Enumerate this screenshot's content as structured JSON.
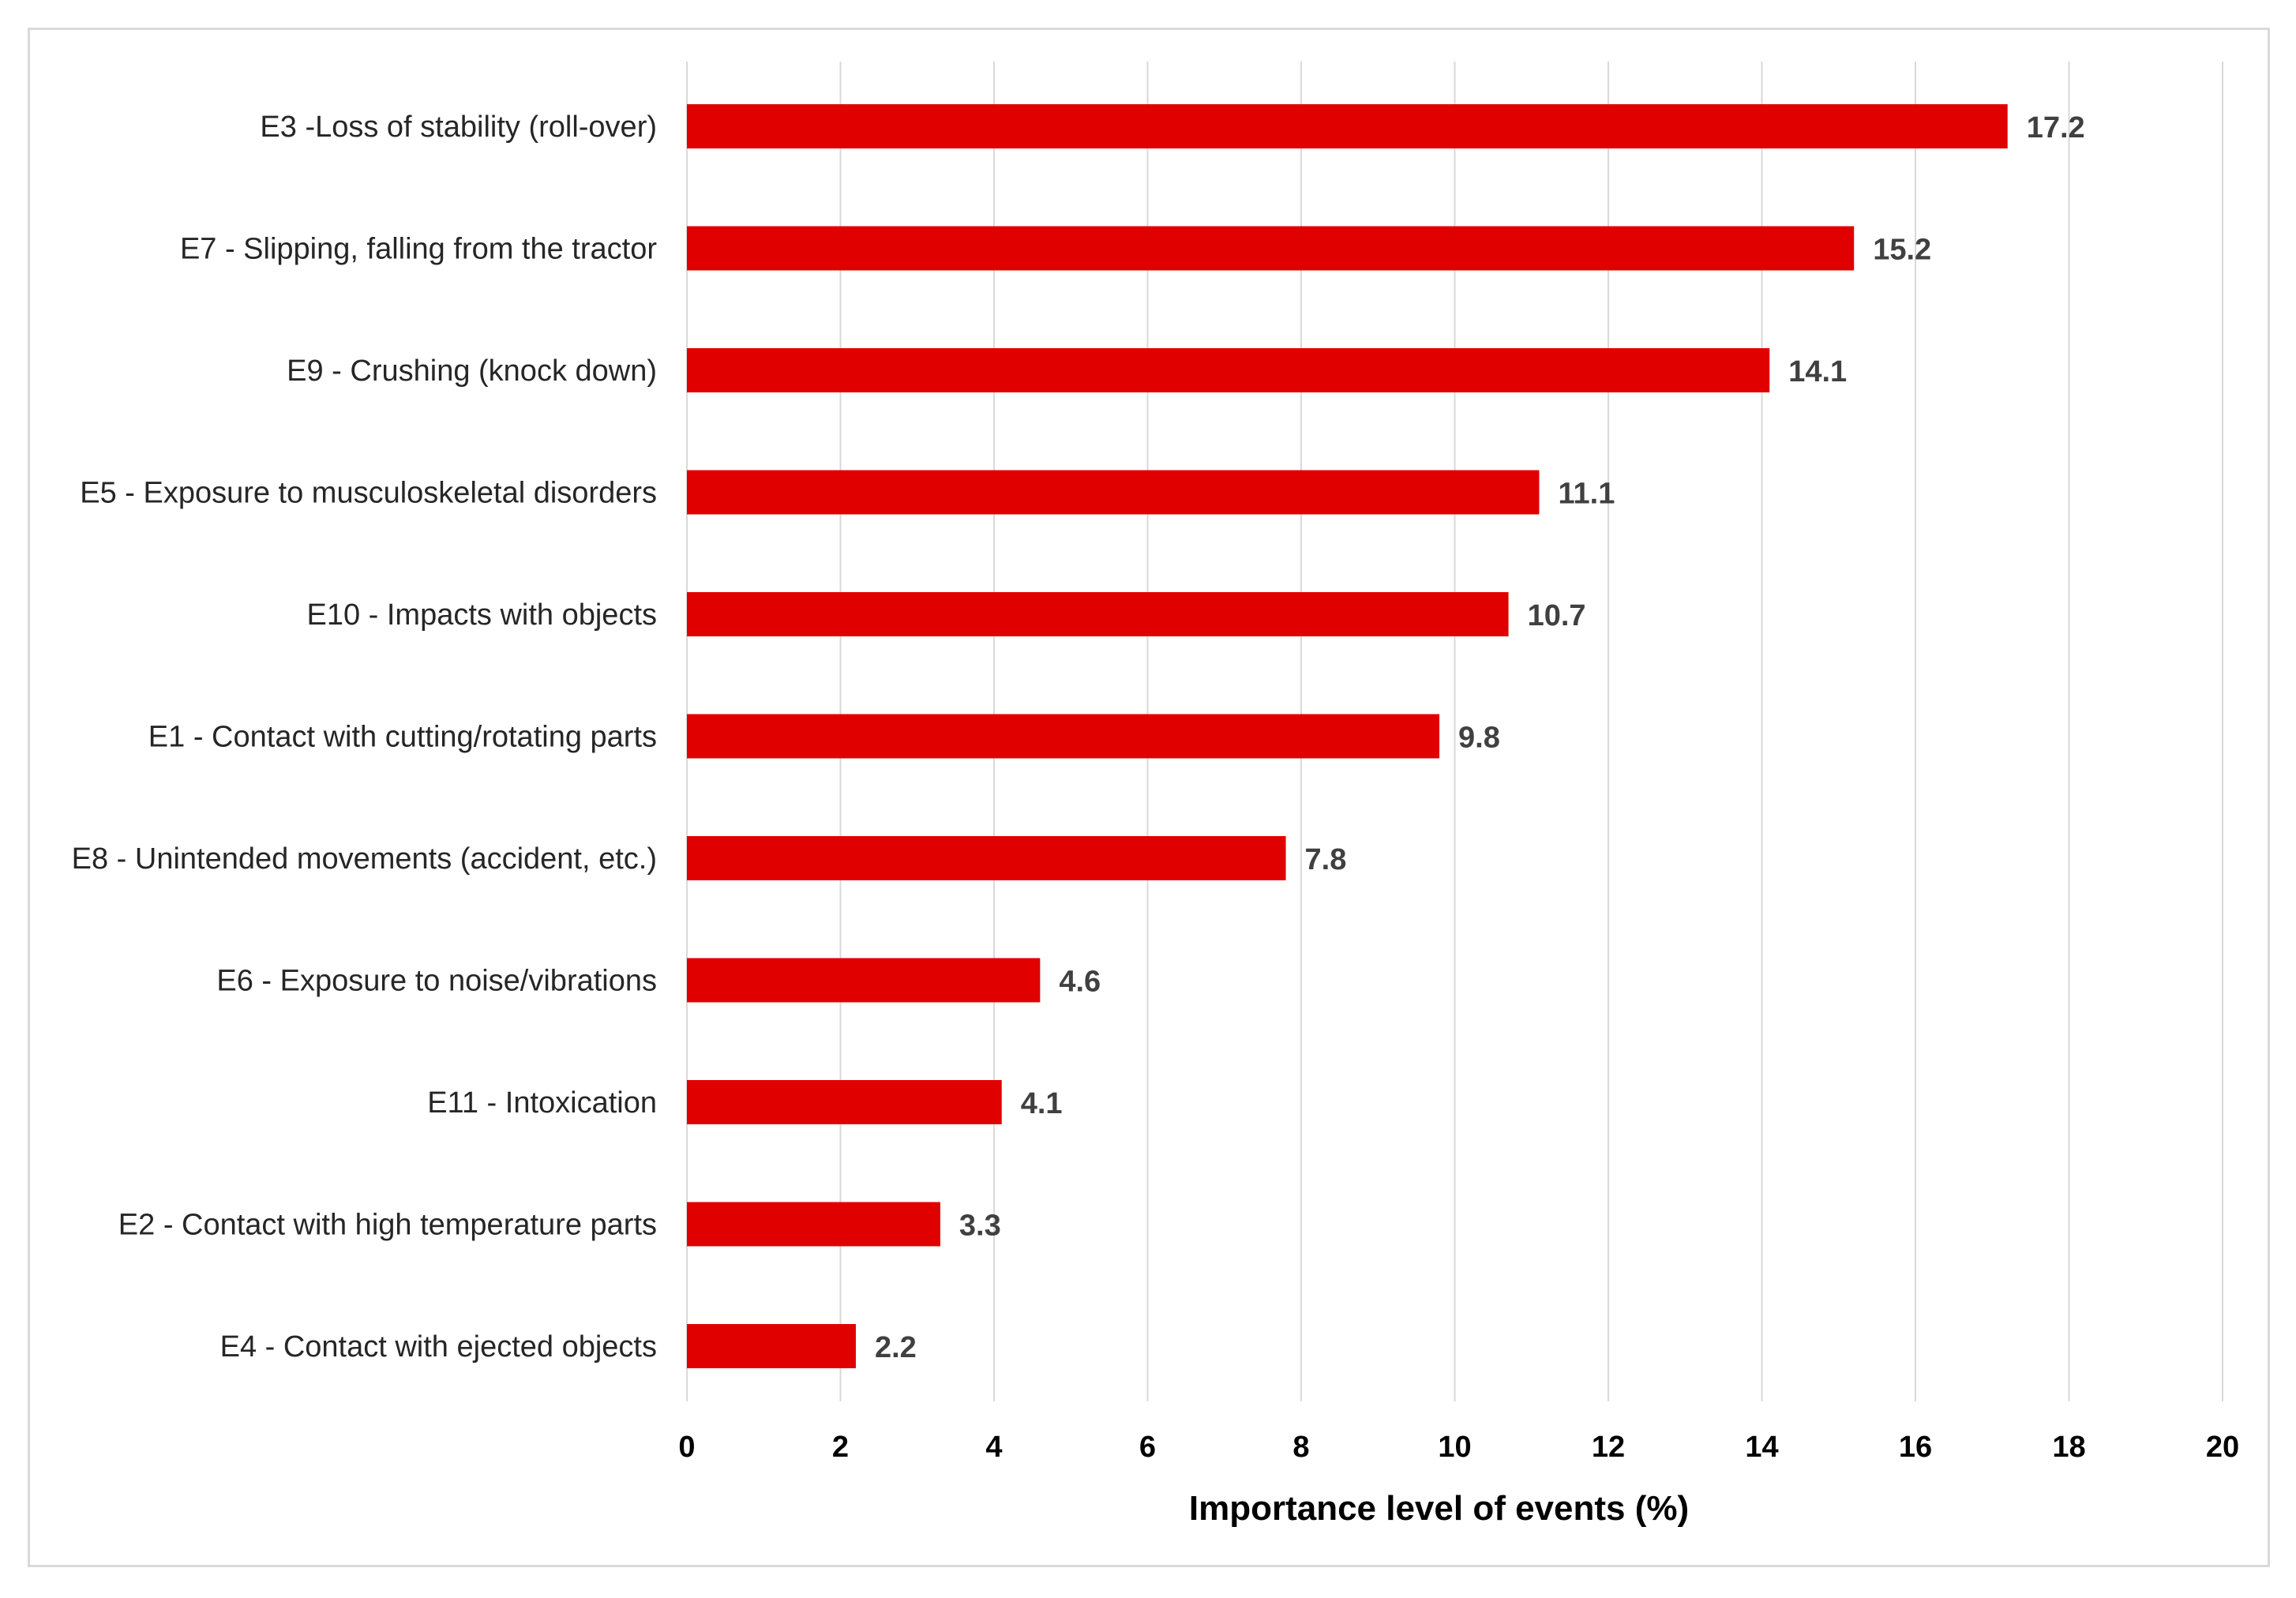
{
  "chart_data": {
    "type": "bar",
    "orientation": "horizontal",
    "categories": [
      "E3 -Loss of stability (roll-over)",
      "E7 - Slipping, falling from the tractor",
      "E9 - Crushing (knock down)",
      "E5 - Exposure to musculoskeletal disorders",
      "E10 - Impacts with objects",
      "E1 - Contact with cutting/rotating parts",
      "E8 - Unintended movements (accident, etc.)",
      "E6 - Exposure to noise/vibrations",
      "E11 - Intoxication",
      "E2 - Contact with high temperature parts",
      "E4 - Contact with ejected objects"
    ],
    "values": [
      17.2,
      15.2,
      14.1,
      11.1,
      10.7,
      9.8,
      7.8,
      4.6,
      4.1,
      3.3,
      2.2
    ],
    "value_labels": [
      "17.2",
      "15.2",
      "14.1",
      "11.1",
      "10.7",
      "9.8",
      "7.8",
      "4.6",
      "4.1",
      "3.3",
      "2.2"
    ],
    "title": "",
    "xlabel": "Importance level of events (%)",
    "ylabel": "",
    "xlim": [
      0,
      20
    ],
    "xticks": [
      0,
      2,
      4,
      6,
      8,
      10,
      12,
      14,
      16,
      18,
      20
    ],
    "xtick_labels": [
      "0",
      "2",
      "4",
      "6",
      "8",
      "10",
      "12",
      "14",
      "16",
      "18",
      "20"
    ],
    "grid": "vertical",
    "legend": "none",
    "colors": {
      "bar": "#e00000",
      "grid": "#d9d9d9",
      "frame": "#d9d9d9"
    }
  }
}
